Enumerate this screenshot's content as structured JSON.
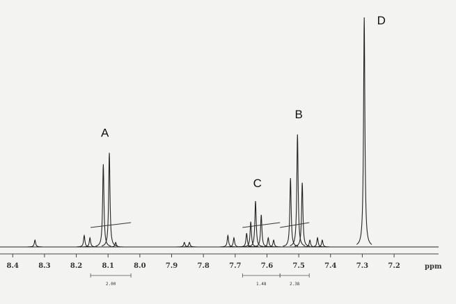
{
  "chart_data": {
    "type": "spectrum",
    "x_label": "ppm",
    "xlim": [
      8.44,
      7.06
    ],
    "ylim": [
      0,
      100
    ],
    "xticks": [
      8.4,
      8.3,
      8.2,
      8.1,
      {
        "value": 8,
        "label": "8.0"
      },
      7.9,
      7.8,
      7.7,
      7.6,
      7.5,
      7.4,
      7.3,
      7.2
    ],
    "color": "#222222",
    "peaks": {
      "x": [
        8.33,
        8.175,
        8.157,
        8.115,
        8.096,
        8.076,
        7.86,
        7.844,
        7.723,
        7.704,
        7.664,
        7.651,
        7.636,
        7.618,
        7.596,
        7.579,
        7.526,
        7.504,
        7.489,
        7.465,
        7.441,
        7.426,
        7.294
      ],
      "values": [
        3,
        5,
        4,
        36,
        41,
        2,
        2,
        2,
        5,
        4,
        6,
        11,
        20,
        14,
        4,
        3,
        30,
        49,
        28,
        3,
        4,
        3,
        100
      ]
    },
    "annotations": [
      {
        "text": "A",
        "x": 8.11,
        "y": 48
      },
      {
        "text": "B",
        "x": 7.5,
        "y": 56
      },
      {
        "text": "C",
        "x": 7.63,
        "y": 26
      },
      {
        "text": "D",
        "x": 7.24,
        "y": 97
      }
    ],
    "integrals": [
      {
        "label": "2.00",
        "range": [
          8.155,
          8.028
        ]
      },
      {
        "label": "1.48",
        "range": [
          7.677,
          7.559
        ]
      },
      {
        "label": "2.38",
        "range": [
          7.559,
          7.467
        ]
      }
    ]
  }
}
